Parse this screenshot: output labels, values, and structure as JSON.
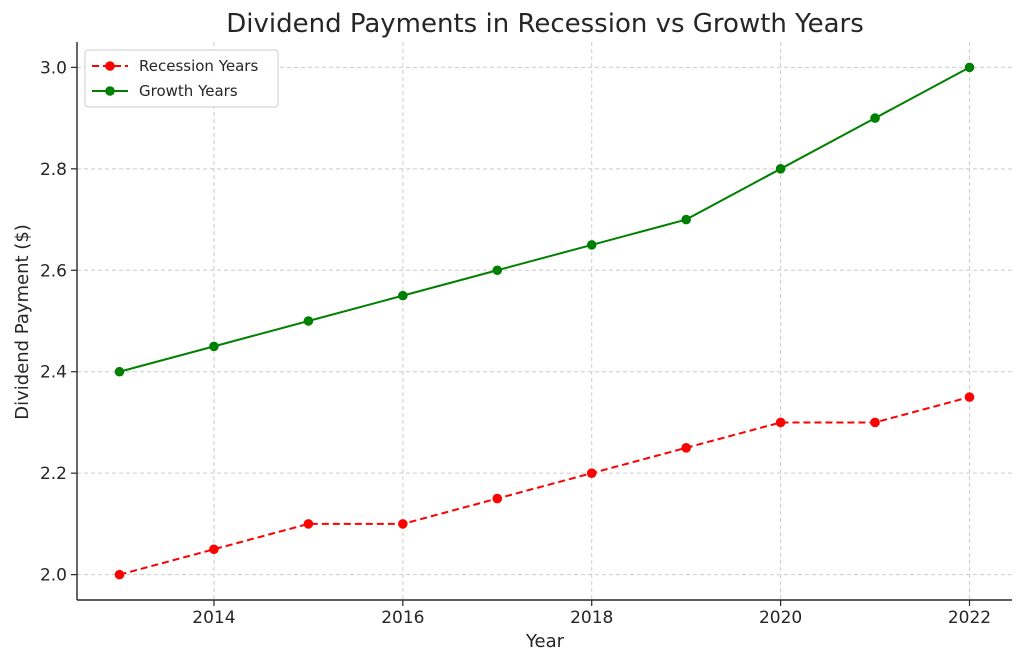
{
  "chart_data": {
    "type": "line",
    "title": "Dividend Payments in Recession vs Growth Years",
    "xlabel": "Year",
    "ylabel": "Dividend Payment ($)",
    "x": [
      2013,
      2014,
      2015,
      2016,
      2017,
      2018,
      2019,
      2020,
      2021,
      2022
    ],
    "xlim": [
      2012.55,
      2022.45
    ],
    "ylim": [
      1.95,
      3.05
    ],
    "xticks": [
      "2014",
      "2016",
      "2018",
      "2020",
      "2022"
    ],
    "yticks": [
      "2.0",
      "2.2",
      "2.4",
      "2.6",
      "2.8",
      "3.0"
    ],
    "grid": true,
    "legend_position": "top-left",
    "series": [
      {
        "name": "Recession Years",
        "color": "#ff0000",
        "line_style": "dashed",
        "marker": "circle",
        "values": [
          2.0,
          2.05,
          2.1,
          2.1,
          2.15,
          2.2,
          2.25,
          2.3,
          2.3,
          2.35
        ]
      },
      {
        "name": "Growth Years",
        "color": "#008000",
        "line_style": "solid",
        "marker": "circle",
        "values": [
          2.4,
          2.45,
          2.5,
          2.55,
          2.6,
          2.65,
          2.7,
          2.8,
          2.9,
          3.0
        ]
      }
    ]
  }
}
